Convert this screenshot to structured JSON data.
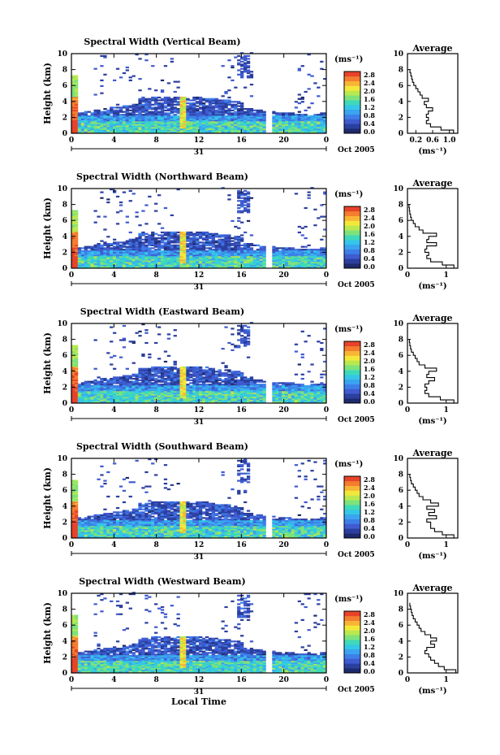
{
  "chart_data": [
    {
      "type": "heatmap",
      "title": "Spectral Width (Vertical Beam)",
      "ylabel": "Height (km)",
      "xticks": [
        "0",
        "4",
        "8",
        "12",
        "16",
        "20",
        "0"
      ],
      "yticks": [
        "0",
        "2",
        "4",
        "6",
        "8",
        "10"
      ],
      "day_label": "31",
      "date_label": "Oct 2005",
      "xlim": [
        0,
        24
      ],
      "ylim": [
        0,
        10
      ],
      "colorbar": {
        "unit": "(ms⁻¹)",
        "ticks": [
          "2.8",
          "2.4",
          "2.0",
          "1.6",
          "1.2",
          "0.8",
          "0.4",
          "0.0"
        ],
        "range": [
          0,
          2.8
        ]
      },
      "average": {
        "title": "Average",
        "xlabel": "(ms⁻¹)",
        "xticks": [
          "0.2",
          "0.6",
          "1.0"
        ],
        "xlim": [
          0,
          1.2
        ],
        "yticks": [
          "0",
          "2",
          "4",
          "6",
          "8",
          "10"
        ],
        "ylim": [
          0,
          10
        ],
        "height": [
          0.2,
          0.6,
          1.0,
          1.4,
          1.8,
          2.2,
          2.6,
          3.0,
          3.4,
          3.8,
          4.2,
          4.6,
          5.0,
          5.4,
          5.8,
          6.2,
          6.6,
          7.0,
          7.4,
          7.8
        ],
        "width": [
          1.1,
          0.8,
          0.55,
          0.45,
          0.5,
          0.45,
          0.5,
          0.6,
          0.45,
          0.4,
          0.5,
          0.35,
          0.3,
          0.25,
          0.2,
          0.15,
          0.12,
          0.1,
          0.08,
          0.06
        ]
      }
    },
    {
      "type": "heatmap",
      "title": "Spectral Width (Northward Beam)",
      "ylabel": "Height (km)",
      "xticks": [
        "0",
        "4",
        "8",
        "12",
        "16",
        "20",
        "0"
      ],
      "yticks": [
        "0",
        "2",
        "4",
        "6",
        "8",
        "10"
      ],
      "day_label": "31",
      "date_label": "Oct 2005",
      "xlim": [
        0,
        24
      ],
      "ylim": [
        0,
        10
      ],
      "colorbar": {
        "unit": "(ms⁻¹)",
        "ticks": [
          "2.8",
          "2.4",
          "2.0",
          "1.6",
          "1.2",
          "0.8",
          "0.4",
          "0.0"
        ],
        "range": [
          0,
          2.8
        ]
      },
      "average": {
        "title": "Average",
        "xlabel": "(ms⁻¹)",
        "xticks": [
          "0",
          "1"
        ],
        "xlim": [
          0,
          1.3
        ],
        "yticks": [
          "0",
          "2",
          "4",
          "6",
          "8",
          "10"
        ],
        "ylim": [
          0,
          10
        ],
        "height": [
          0.2,
          0.6,
          1.0,
          1.4,
          1.8,
          2.2,
          2.6,
          3.0,
          3.4,
          3.8,
          4.2,
          4.6,
          5.0,
          5.4,
          5.8,
          6.2,
          6.6,
          7.0,
          7.4,
          7.8
        ],
        "width": [
          1.2,
          0.9,
          0.6,
          0.5,
          0.55,
          0.45,
          0.5,
          0.75,
          0.5,
          0.55,
          0.75,
          0.4,
          0.3,
          0.2,
          0.15,
          0.1,
          0.08,
          0.06,
          0.05,
          0.04
        ]
      }
    },
    {
      "type": "heatmap",
      "title": "Spectral Width (Eastward Beam)",
      "ylabel": "Height (km)",
      "xticks": [
        "0",
        "4",
        "8",
        "12",
        "16",
        "20",
        "0"
      ],
      "yticks": [
        "0",
        "2",
        "4",
        "6",
        "8",
        "10"
      ],
      "day_label": "31",
      "date_label": "Oct 2005",
      "xlim": [
        0,
        24
      ],
      "ylim": [
        0,
        10
      ],
      "colorbar": {
        "unit": "(ms⁻¹)",
        "ticks": [
          "2.8",
          "2.4",
          "2.0",
          "1.6",
          "1.2",
          "0.8",
          "0.4",
          "0.0"
        ],
        "range": [
          0,
          2.8
        ]
      },
      "average": {
        "title": "Average",
        "xlabel": "(ms⁻¹)",
        "xticks": [
          "0",
          "1"
        ],
        "xlim": [
          0,
          1.3
        ],
        "yticks": [
          "0",
          "2",
          "4",
          "6",
          "8",
          "10"
        ],
        "ylim": [
          0,
          10
        ],
        "height": [
          0.2,
          0.6,
          1.0,
          1.4,
          1.8,
          2.2,
          2.6,
          3.0,
          3.4,
          3.8,
          4.2,
          4.6,
          5.0,
          5.4,
          5.8,
          6.2,
          6.6,
          7.0,
          7.4,
          7.8
        ],
        "width": [
          1.2,
          0.85,
          0.55,
          0.45,
          0.5,
          0.45,
          0.55,
          0.7,
          0.5,
          0.55,
          0.75,
          0.45,
          0.3,
          0.25,
          0.2,
          0.15,
          0.1,
          0.08,
          0.06,
          0.05
        ]
      }
    },
    {
      "type": "heatmap",
      "title": "Spectral Width (Southward Beam)",
      "ylabel": "Height (km)",
      "xticks": [
        "0",
        "4",
        "8",
        "12",
        "16",
        "20",
        "0"
      ],
      "yticks": [
        "0",
        "2",
        "4",
        "6",
        "8",
        "10"
      ],
      "day_label": "31",
      "date_label": "Oct 2005",
      "xlim": [
        0,
        24
      ],
      "ylim": [
        0,
        10
      ],
      "colorbar": {
        "unit": "(ms⁻¹)",
        "ticks": [
          "2.8",
          "2.4",
          "2.0",
          "1.6",
          "1.2",
          "0.8",
          "0.4",
          "0.0"
        ],
        "range": [
          0,
          2.8
        ]
      },
      "average": {
        "title": "Average",
        "xlabel": "(ms⁻¹)",
        "xticks": [
          "0",
          "1"
        ],
        "xlim": [
          0,
          1.3
        ],
        "yticks": [
          "0",
          "2",
          "4",
          "6",
          "8",
          "10"
        ],
        "ylim": [
          0,
          10
        ],
        "height": [
          0.2,
          0.6,
          1.0,
          1.4,
          1.8,
          2.2,
          2.6,
          3.0,
          3.4,
          3.8,
          4.2,
          4.6,
          5.0,
          5.4,
          5.8,
          6.2,
          6.6,
          7.0,
          7.4,
          7.8
        ],
        "width": [
          1.2,
          0.9,
          0.7,
          0.6,
          0.6,
          0.5,
          0.75,
          0.55,
          0.7,
          0.5,
          0.8,
          0.6,
          0.4,
          0.3,
          0.25,
          0.2,
          0.15,
          0.1,
          0.08,
          0.06
        ]
      }
    },
    {
      "type": "heatmap",
      "title": "Spectral Width (Westward Beam)",
      "ylabel": "Height (km)",
      "xlabel": "Local Time",
      "xticks": [
        "0",
        "4",
        "8",
        "12",
        "16",
        "20",
        "0"
      ],
      "yticks": [
        "0",
        "2",
        "4",
        "6",
        "8",
        "10"
      ],
      "day_label": "31",
      "date_label": "Oct 2005",
      "xlim": [
        0,
        24
      ],
      "ylim": [
        0,
        10
      ],
      "colorbar": {
        "unit": "(ms⁻¹)",
        "ticks": [
          "2.8",
          "2.4",
          "2.0",
          "1.6",
          "1.2",
          "0.8",
          "0.4",
          "0.0"
        ],
        "range": [
          0,
          2.8
        ]
      },
      "average": {
        "title": "Average",
        "xlabel": "(ms⁻¹)",
        "xticks": [
          "0",
          "1"
        ],
        "xlim": [
          0,
          1.3
        ],
        "yticks": [
          "0",
          "2",
          "4",
          "6",
          "8",
          "10"
        ],
        "ylim": [
          0,
          10
        ],
        "height": [
          0.2,
          0.6,
          1.0,
          1.4,
          1.8,
          2.2,
          2.6,
          3.0,
          3.4,
          3.8,
          4.2,
          4.6,
          5.0,
          5.4,
          5.8,
          6.2,
          6.6,
          7.0,
          7.4,
          7.8,
          8.2,
          8.6
        ],
        "width": [
          1.25,
          0.95,
          0.8,
          0.7,
          0.6,
          0.55,
          0.45,
          0.5,
          0.7,
          0.6,
          0.75,
          0.6,
          0.45,
          0.35,
          0.3,
          0.25,
          0.2,
          0.15,
          0.12,
          0.1,
          0.08,
          0.06
        ]
      }
    }
  ]
}
